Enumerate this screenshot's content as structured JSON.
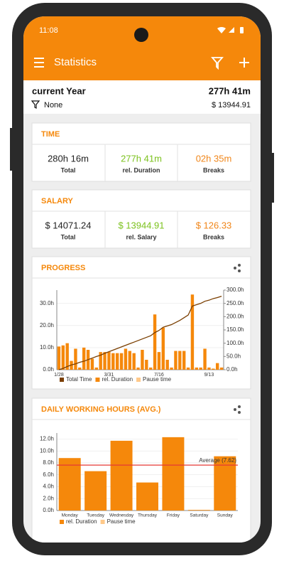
{
  "status_bar": {
    "time": "11:08"
  },
  "app_bar": {
    "title": "Statistics"
  },
  "summary": {
    "period": "current Year",
    "total": "277h 41m",
    "filter": "None",
    "salary": "$ 13944.91"
  },
  "time_card": {
    "title": "TIME",
    "items": [
      {
        "value": "280h 16m",
        "label": "Total",
        "color": "#222222"
      },
      {
        "value": "277h 41m",
        "label": "rel. Duration",
        "color": "#7cc21e"
      },
      {
        "value": "02h 35m",
        "label": "Breaks",
        "color": "#f0861a"
      }
    ]
  },
  "salary_card": {
    "title": "SALARY",
    "items": [
      {
        "value": "$ 14071.24",
        "label": "Total",
        "color": "#222222"
      },
      {
        "value": "$ 13944.91",
        "label": "rel. Salary",
        "color": "#7cc21e"
      },
      {
        "value": "$ 126.33",
        "label": "Breaks",
        "color": "#f0861a"
      }
    ]
  },
  "progress_chart": {
    "type": "bar_line",
    "title": "PROGRESS",
    "categories": [
      "1/28",
      null,
      null,
      null,
      null,
      null,
      null,
      null,
      null,
      null,
      null,
      null,
      "3/31",
      null,
      null,
      null,
      null,
      null,
      null,
      null,
      null,
      null,
      null,
      null,
      "7/16",
      null,
      null,
      null,
      null,
      null,
      null,
      null,
      null,
      null,
      null,
      null,
      "9/13",
      null,
      null,
      null
    ],
    "ylim": [
      0,
      36
    ],
    "yticks": [
      {
        "value": 0,
        "label": "0.0h"
      },
      {
        "value": 10,
        "label": "10.0h"
      },
      {
        "value": 20,
        "label": "20.0h"
      },
      {
        "value": 30,
        "label": "30.0h"
      }
    ],
    "y2lim": [
      0,
      300
    ],
    "y2ticks": [
      {
        "value": 0,
        "label": "0.0h"
      },
      {
        "value": 50,
        "label": "50.0h"
      },
      {
        "value": 100,
        "label": "100.0h"
      },
      {
        "value": 150,
        "label": "150.0h"
      },
      {
        "value": 200,
        "label": "200.0h"
      },
      {
        "value": 250,
        "label": "250.0h"
      },
      {
        "value": 300,
        "label": "300.0h"
      }
    ],
    "series": [
      {
        "name": "rel. Duration",
        "color": "#f5880b",
        "values": [
          10.5,
          11,
          12,
          4,
          9.5,
          1,
          10,
          9,
          5,
          1,
          8,
          8,
          8,
          7.5,
          7.5,
          7.5,
          9.5,
          8.5,
          7.5,
          1,
          9,
          4.5,
          1,
          25,
          8,
          19,
          4.5,
          1,
          8.5,
          8.5,
          8.5,
          1,
          34,
          1,
          1,
          9.5,
          1,
          0.5,
          3,
          1
        ]
      },
      {
        "name": "Pause time",
        "color": "#ffc98a",
        "values": [
          0,
          0,
          0,
          0,
          0,
          0,
          0,
          0,
          0,
          0,
          0,
          0,
          0,
          0,
          0,
          0,
          0,
          0,
          0,
          0,
          0,
          0,
          0,
          0,
          0,
          0,
          0,
          0,
          0,
          0,
          0,
          0,
          0,
          0,
          0,
          0,
          0,
          0,
          0,
          0
        ]
      },
      {
        "name": "Total Time",
        "color": "#7a3e00",
        "axis": "y2",
        "values": [
          0,
          5,
          12,
          18,
          22,
          28,
          32,
          38,
          44,
          50,
          55,
          62,
          68,
          74,
          80,
          86,
          92,
          98,
          104,
          110,
          116,
          122,
          128,
          140,
          148,
          160,
          165,
          170,
          178,
          186,
          196,
          206,
          240,
          245,
          250,
          258,
          262,
          268,
          272,
          277
        ]
      }
    ]
  },
  "daily_chart": {
    "type": "bar",
    "title": "DAILY WORKING HOURS (AVG.)",
    "categories": [
      "Monday",
      "Tuesday",
      "Wednesday",
      "Thursday",
      "Friday",
      "Saturday",
      "Sunday"
    ],
    "ylim": [
      0,
      13
    ],
    "yticks": [
      {
        "value": 0,
        "label": "0.0h"
      },
      {
        "value": 2,
        "label": "2.0h"
      },
      {
        "value": 4,
        "label": "4.0h"
      },
      {
        "value": 6,
        "label": "6.0h"
      },
      {
        "value": 8,
        "label": "8.0h"
      },
      {
        "value": 10,
        "label": "10.0h"
      },
      {
        "value": 12,
        "label": "12.0h"
      }
    ],
    "series": [
      {
        "name": "rel. Duration",
        "color": "#f5880b",
        "values": [
          8.8,
          6.6,
          11.7,
          4.7,
          12.3,
          0.1,
          9.1
        ]
      },
      {
        "name": "Pause time",
        "color": "#ffc98a",
        "values": [
          0,
          0,
          0,
          0,
          0,
          0,
          0
        ]
      }
    ],
    "average": {
      "value": 7.62,
      "label": "Average (7.62)",
      "color": "#e53935"
    }
  }
}
